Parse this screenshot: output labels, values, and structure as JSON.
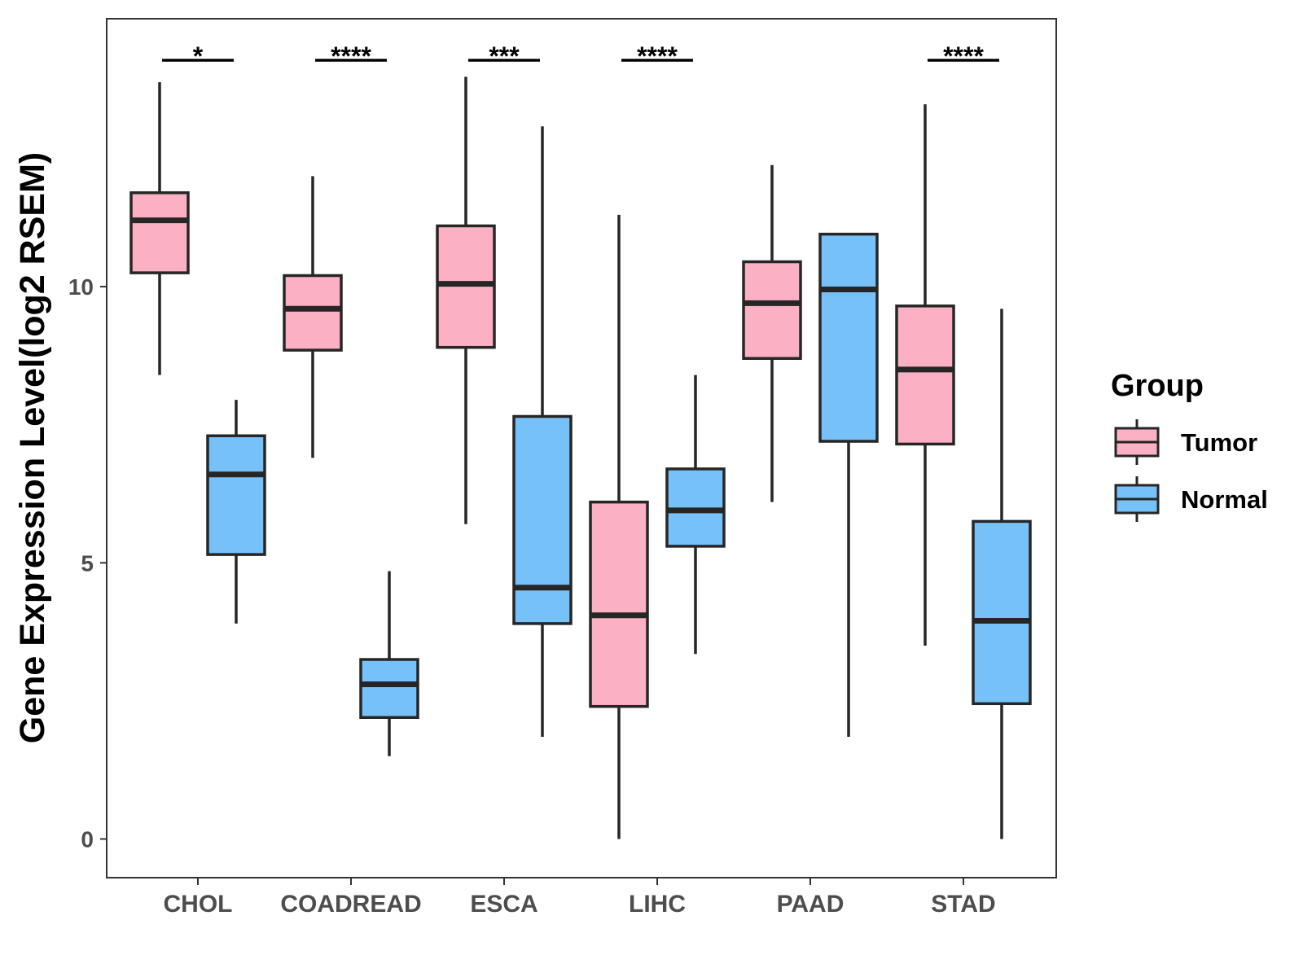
{
  "chart_data": {
    "type": "boxplot",
    "ylabel": "Gene Expression Level(log2 RSEM)",
    "xlabel": "",
    "ylim": [
      -0.7,
      14.85
    ],
    "yticks": [
      0,
      5,
      10
    ],
    "categories": [
      "CHOL",
      "COADREAD",
      "ESCA",
      "LIHC",
      "PAAD",
      "STAD"
    ],
    "legend": {
      "title": "Group",
      "position": "right",
      "items": [
        {
          "name": "Tumor",
          "color": "#FBB1C3"
        },
        {
          "name": "Normal",
          "color": "#77C1F9"
        }
      ]
    },
    "series": [
      {
        "name": "Tumor",
        "color": "#FBB1C3",
        "boxes": [
          {
            "min": 8.4,
            "q1": 10.25,
            "median": 11.2,
            "q3": 11.7,
            "max": 13.7
          },
          {
            "min": 6.9,
            "q1": 8.85,
            "median": 9.6,
            "q3": 10.2,
            "max": 12.0
          },
          {
            "min": 5.7,
            "q1": 8.9,
            "median": 10.05,
            "q3": 11.1,
            "max": 13.8
          },
          {
            "min": 0.0,
            "q1": 2.4,
            "median": 4.05,
            "q3": 6.1,
            "max": 11.3
          },
          {
            "min": 6.1,
            "q1": 8.7,
            "median": 9.7,
            "q3": 10.45,
            "max": 12.2
          },
          {
            "min": 3.5,
            "q1": 7.15,
            "median": 8.5,
            "q3": 9.65,
            "max": 13.3
          }
        ]
      },
      {
        "name": "Normal",
        "color": "#77C1F9",
        "boxes": [
          {
            "min": 3.9,
            "q1": 5.15,
            "median": 6.6,
            "q3": 7.3,
            "max": 7.95
          },
          {
            "min": 1.5,
            "q1": 2.2,
            "median": 2.8,
            "q3": 3.25,
            "max": 4.85
          },
          {
            "min": 1.85,
            "q1": 3.9,
            "median": 4.55,
            "q3": 7.65,
            "max": 12.9
          },
          {
            "min": 3.35,
            "q1": 5.3,
            "median": 5.95,
            "q3": 6.7,
            "max": 8.4
          },
          {
            "min": 1.85,
            "q1": 7.2,
            "median": 9.95,
            "q3": 10.95,
            "max": 10.95
          },
          {
            "min": 0.0,
            "q1": 2.45,
            "median": 3.95,
            "q3": 5.75,
            "max": 9.6
          }
        ]
      }
    ],
    "significance": [
      "*",
      "****",
      "***",
      "****",
      "",
      "****"
    ]
  }
}
